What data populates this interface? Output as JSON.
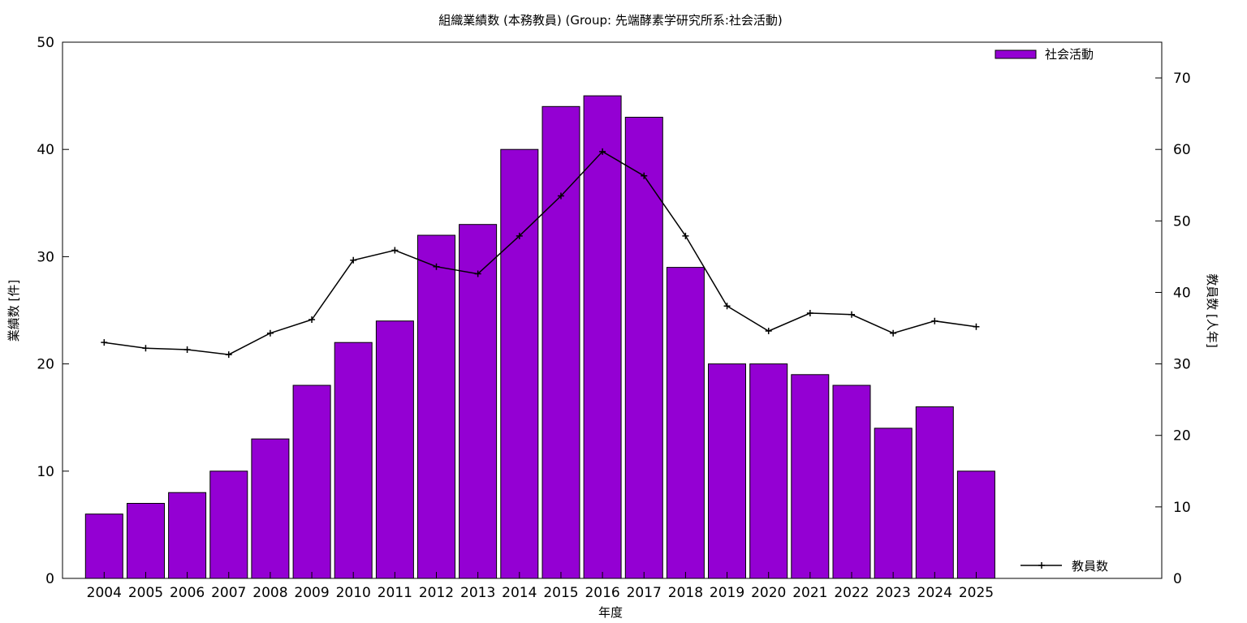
{
  "chart_data": {
    "type": "bar",
    "title": "組織業績数 (本務教員) (Group: 先端酵素学研究所系:社会活動)",
    "xlabel": "年度",
    "ylabel": "業績数 [件]",
    "y2label": "教員数 [人年]",
    "ylim": [
      0,
      50
    ],
    "y2lim": [
      0,
      75
    ],
    "yticks": [
      0,
      10,
      20,
      30,
      40,
      50
    ],
    "y2ticks": [
      0,
      10,
      20,
      30,
      40,
      50,
      60,
      70
    ],
    "categories": [
      "2004",
      "2005",
      "2006",
      "2007",
      "2008",
      "2009",
      "2010",
      "2011",
      "2012",
      "2013",
      "2014",
      "2015",
      "2016",
      "2017",
      "2018",
      "2019",
      "2020",
      "2021",
      "2022",
      "2023",
      "2024",
      "2025"
    ],
    "series": [
      {
        "name": "社会活動",
        "type": "bar",
        "axis": "left",
        "color": "#9400d3",
        "values": [
          6,
          7,
          8,
          10,
          13,
          18,
          22,
          24,
          32,
          33,
          40,
          44,
          45,
          43,
          29,
          20,
          20,
          19,
          18,
          14,
          16,
          10
        ]
      },
      {
        "name": "教員数",
        "type": "line",
        "axis": "right",
        "color": "#000000",
        "values": [
          33.0,
          32.2,
          32.0,
          31.3,
          34.3,
          36.2,
          44.5,
          45.9,
          43.6,
          42.6,
          47.9,
          53.5,
          59.7,
          56.3,
          47.9,
          38.1,
          34.6,
          37.1,
          36.9,
          34.3,
          36.0,
          35.2
        ]
      }
    ],
    "legend": [
      "top-right",
      "bottom-right"
    ],
    "grid": false
  }
}
